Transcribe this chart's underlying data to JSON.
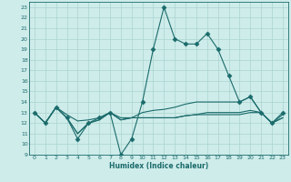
{
  "title": "",
  "xlabel": "Humidex (Indice chaleur)",
  "ylabel": "",
  "background_color": "#ceecea",
  "grid_color": "#aad4d0",
  "line_color": "#1a6b6b",
  "xlim": [
    -0.5,
    23.5
  ],
  "ylim": [
    9,
    23.5
  ],
  "xticks": [
    0,
    1,
    2,
    3,
    4,
    5,
    6,
    7,
    8,
    9,
    10,
    11,
    12,
    13,
    14,
    15,
    16,
    17,
    18,
    19,
    20,
    21,
    22,
    23
  ],
  "yticks": [
    9,
    10,
    11,
    12,
    13,
    14,
    15,
    16,
    17,
    18,
    19,
    20,
    21,
    22,
    23
  ],
  "series": [
    {
      "x": [
        0,
        1,
        2,
        3,
        4,
        5,
        6,
        7,
        8,
        9,
        10,
        11,
        12,
        13,
        14,
        15,
        16,
        17,
        18,
        19,
        20,
        21,
        22,
        23
      ],
      "y": [
        13,
        12,
        13.5,
        12.5,
        10.5,
        12,
        12.5,
        13,
        9,
        10.5,
        14,
        19,
        23,
        20,
        19.5,
        19.5,
        20.5,
        19,
        16.5,
        14,
        14.5,
        13,
        12,
        13
      ],
      "marker": "D",
      "markersize": 2.5,
      "linewidth": 0.8
    },
    {
      "x": [
        0,
        1,
        2,
        3,
        4,
        5,
        6,
        7,
        8,
        9,
        10,
        11,
        12,
        13,
        14,
        15,
        16,
        17,
        18,
        19,
        20,
        21,
        22,
        23
      ],
      "y": [
        13,
        12,
        13.5,
        12.8,
        12.2,
        12.3,
        12.5,
        13.0,
        12.5,
        12.5,
        13.0,
        13.2,
        13.3,
        13.5,
        13.8,
        14.0,
        14.0,
        14.0,
        14.0,
        14.0,
        14.5,
        13.0,
        12.0,
        12.8
      ],
      "marker": null,
      "markersize": 0,
      "linewidth": 0.8
    },
    {
      "x": [
        0,
        1,
        2,
        3,
        4,
        5,
        6,
        7,
        8,
        9,
        10,
        11,
        12,
        13,
        14,
        15,
        16,
        17,
        18,
        19,
        20,
        21,
        22,
        23
      ],
      "y": [
        13,
        12,
        13.5,
        12.5,
        11.0,
        12.0,
        12.3,
        13.0,
        12.3,
        12.5,
        12.5,
        12.5,
        12.5,
        12.5,
        12.7,
        12.8,
        13.0,
        13.0,
        13.0,
        13.0,
        13.2,
        13.0,
        12.0,
        12.5
      ],
      "marker": null,
      "markersize": 0,
      "linewidth": 0.8
    },
    {
      "x": [
        0,
        1,
        2,
        3,
        4,
        5,
        6,
        7,
        8,
        9,
        10,
        11,
        12,
        13,
        14,
        15,
        16,
        17,
        18,
        19,
        20,
        21,
        22,
        23
      ],
      "y": [
        13,
        12,
        13.5,
        12.5,
        11.0,
        12.0,
        12.3,
        13.0,
        12.3,
        12.5,
        12.5,
        12.5,
        12.5,
        12.5,
        12.7,
        12.8,
        12.8,
        12.8,
        12.8,
        12.8,
        13.0,
        13.0,
        12.0,
        12.5
      ],
      "marker": null,
      "markersize": 0,
      "linewidth": 0.8
    }
  ]
}
